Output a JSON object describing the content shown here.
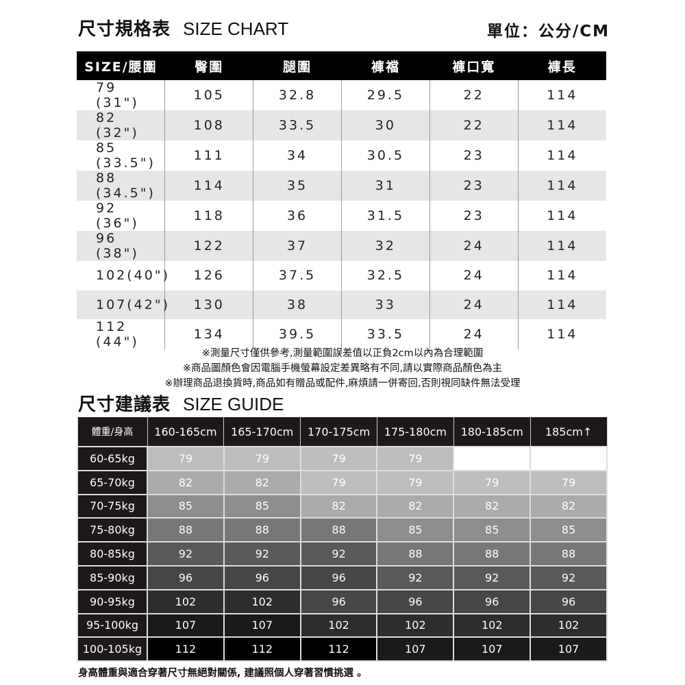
{
  "size_chart": {
    "title_zh": "尺寸規格表",
    "title_en": "SIZE CHART",
    "unit": "單位：公分/CM",
    "headers": [
      "SIZE/腰圍",
      "臀圍",
      "腿圍",
      "褲襠",
      "褲口寬",
      "褲長"
    ],
    "rows": [
      [
        "79 (31\")",
        "105",
        "32.8",
        "29.5",
        "22",
        "114"
      ],
      [
        "82 (32\")",
        "108",
        "33.5",
        "30",
        "22",
        "114"
      ],
      [
        "85 (33.5\")",
        "111",
        "34",
        "30.5",
        "23",
        "114"
      ],
      [
        "88 (34.5\")",
        "114",
        "35",
        "31",
        "23",
        "114"
      ],
      [
        "92 (36\")",
        "118",
        "36",
        "31.5",
        "23",
        "114"
      ],
      [
        "96 (38\")",
        "122",
        "37",
        "32",
        "24",
        "114"
      ],
      [
        "102(40\")",
        "126",
        "37.5",
        "32.5",
        "24",
        "114"
      ],
      [
        "107(42\")",
        "130",
        "38",
        "33",
        "24",
        "114"
      ],
      [
        "112 (44\")",
        "134",
        "39.5",
        "33.5",
        "24",
        "114"
      ]
    ]
  },
  "notes": [
    "※測量尺寸僅供參考,測量範圍誤差值以正負2cm以內為合理範圍",
    "※商品圖顏色會因電腦手機螢幕設定差異略有不同,請以實際商品顏色為主",
    "※辦理商品退換貨時,商品如有贈品或配件,麻煩請一併寄回,否則視同缺件無法受理"
  ],
  "size_guide": {
    "title_zh": "尺寸建議表",
    "title_en": "SIZE GUIDE",
    "headers": [
      "體重/身高",
      "160-165cm",
      "165-170cm",
      "170-175cm",
      "175-180cm",
      "180-185cm",
      "185cm↑"
    ],
    "rows": [
      [
        "60-65kg",
        "79",
        "79",
        "79",
        "79",
        "",
        ""
      ],
      [
        "65-70kg",
        "82",
        "82",
        "79",
        "79",
        "79",
        "79"
      ],
      [
        "70-75kg",
        "85",
        "85",
        "82",
        "82",
        "82",
        "82"
      ],
      [
        "75-80kg",
        "88",
        "88",
        "88",
        "85",
        "85",
        "85"
      ],
      [
        "80-85kg",
        "92",
        "92",
        "92",
        "88",
        "88",
        "88"
      ],
      [
        "85-90kg",
        "96",
        "96",
        "96",
        "92",
        "92",
        "92"
      ],
      [
        "90-95kg",
        "102",
        "102",
        "96",
        "96",
        "96",
        "96"
      ],
      [
        "95-100kg",
        "107",
        "107",
        "102",
        "102",
        "102",
        "102"
      ],
      [
        "100-105kg",
        "112",
        "112",
        "112",
        "107",
        "107",
        "107"
      ]
    ],
    "cell_colors": {
      "79": "#bdbdbd",
      "82": "#ababab",
      "85": "#8d8d8d",
      "88": "#777777",
      "92": "#5a5a5a",
      "96": "#464646",
      "102": "#2d2d2d",
      "107": "#1a1a1a",
      "112": "#000000",
      "": "#ffffff"
    }
  },
  "footer": "身高體重與適合穿著尺寸無絕對關係, 建議照個人穿著習慣挑選 。"
}
